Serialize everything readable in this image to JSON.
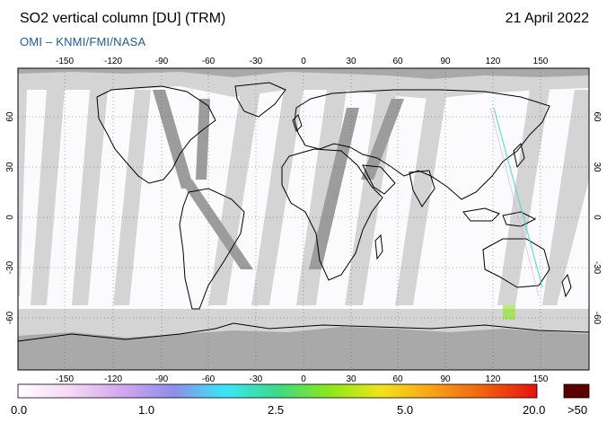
{
  "header": {
    "title": "SO2 vertical column [DU] (TRM)",
    "date": "21 April 2022",
    "subtitle": "OMI  –  KNMI/FMI/NASA"
  },
  "map": {
    "projection": "equirectangular",
    "lon_ticks": [
      "-150",
      "-120",
      "-90",
      "-60",
      "-30",
      "0",
      "30",
      "60",
      "90",
      "120",
      "150"
    ],
    "lat_ticks": [
      "60",
      "30",
      "0",
      "-30",
      "-60"
    ],
    "colors": {
      "ocean": "#ffffff",
      "no_data": "#d4d4d4",
      "polar_night": "#a9a9a9",
      "coast": "#000000",
      "grid": "#555555"
    }
  },
  "colorbar": {
    "labels": [
      "0.0",
      "1.0",
      "2.5",
      "5.0",
      "20.0",
      ">50"
    ],
    "colors": [
      "#ffffff",
      "#f6d8f4",
      "#d4a6ee",
      "#8e8ee8",
      "#36e8f6",
      "#3cd98a",
      "#8ae81a",
      "#f0e41a",
      "#f8a018",
      "#f06010",
      "#e81010"
    ],
    "overflow_color": "#5a0000"
  }
}
